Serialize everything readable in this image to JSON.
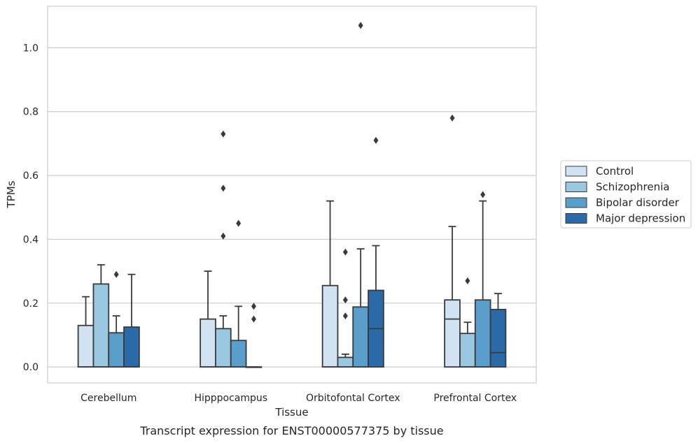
{
  "caption": "Transcript expression for ENST00000577375 by tissue",
  "chart_data": {
    "type": "box",
    "xlabel": "Tissue",
    "ylabel": "TPMs",
    "ylim": [
      -0.05,
      1.13
    ],
    "yticks": [
      "0.0",
      "0.2",
      "0.4",
      "0.6",
      "0.8",
      "1.0"
    ],
    "grid": "horizontal",
    "legend_position": "right",
    "categories": [
      "Cerebellum",
      "Hipppocampus",
      "Orbitofontal Cortex",
      "Prefrontal Cortex"
    ],
    "series": [
      {
        "name": "Control",
        "color": "#d1e2f2",
        "boxes": [
          {
            "q1": 0.0,
            "median": 0.0,
            "q3": 0.13,
            "whisker_low": 0.0,
            "whisker_high": 0.22,
            "outliers": []
          },
          {
            "q1": 0.0,
            "median": 0.0,
            "q3": 0.15,
            "whisker_low": 0.0,
            "whisker_high": 0.3,
            "outliers": []
          },
          {
            "q1": 0.0,
            "median": 0.0,
            "q3": 0.255,
            "whisker_low": 0.0,
            "whisker_high": 0.52,
            "outliers": []
          },
          {
            "q1": 0.0,
            "median": 0.15,
            "q3": 0.21,
            "whisker_low": 0.0,
            "whisker_high": 0.44,
            "outliers": [
              0.78
            ]
          }
        ]
      },
      {
        "name": "Schizophrenia",
        "color": "#9ac8e0",
        "boxes": [
          {
            "q1": 0.0,
            "median": 0.0,
            "q3": 0.26,
            "whisker_low": 0.0,
            "whisker_high": 0.32,
            "outliers": []
          },
          {
            "q1": 0.0,
            "median": 0.0,
            "q3": 0.12,
            "whisker_low": 0.0,
            "whisker_high": 0.16,
            "outliers": [
              0.41,
              0.56,
              0.73
            ]
          },
          {
            "q1": 0.0,
            "median": 0.0,
            "q3": 0.03,
            "whisker_low": 0.0,
            "whisker_high": 0.04,
            "outliers": [
              0.16,
              0.21,
              0.36
            ]
          },
          {
            "q1": 0.0,
            "median": 0.0,
            "q3": 0.105,
            "whisker_low": 0.0,
            "whisker_high": 0.14,
            "outliers": [
              0.27
            ]
          }
        ]
      },
      {
        "name": "Bipolar disorder",
        "color": "#5a9fcc",
        "boxes": [
          {
            "q1": 0.0,
            "median": 0.0,
            "q3": 0.107,
            "whisker_low": 0.0,
            "whisker_high": 0.16,
            "outliers": [
              0.29
            ]
          },
          {
            "q1": 0.0,
            "median": 0.0,
            "q3": 0.083,
            "whisker_low": 0.0,
            "whisker_high": 0.19,
            "outliers": [
              0.45
            ]
          },
          {
            "q1": 0.0,
            "median": 0.0,
            "q3": 0.188,
            "whisker_low": 0.0,
            "whisker_high": 0.37,
            "outliers": [
              1.07
            ]
          },
          {
            "q1": 0.0,
            "median": 0.0,
            "q3": 0.21,
            "whisker_low": 0.0,
            "whisker_high": 0.52,
            "outliers": [
              0.54
            ]
          }
        ]
      },
      {
        "name": "Major depression",
        "color": "#2b6aa8",
        "boxes": [
          {
            "q1": 0.0,
            "median": 0.0,
            "q3": 0.125,
            "whisker_low": 0.0,
            "whisker_high": 0.29,
            "outliers": []
          },
          {
            "q1": 0.0,
            "median": 0.0,
            "q3": 0.0,
            "whisker_low": 0.0,
            "whisker_high": 0.0,
            "outliers": [
              0.15,
              0.19
            ]
          },
          {
            "q1": 0.0,
            "median": 0.12,
            "q3": 0.24,
            "whisker_low": 0.0,
            "whisker_high": 0.38,
            "outliers": [
              0.71
            ]
          },
          {
            "q1": 0.0,
            "median": 0.045,
            "q3": 0.18,
            "whisker_low": 0.0,
            "whisker_high": 0.23,
            "outliers": []
          }
        ]
      }
    ]
  }
}
